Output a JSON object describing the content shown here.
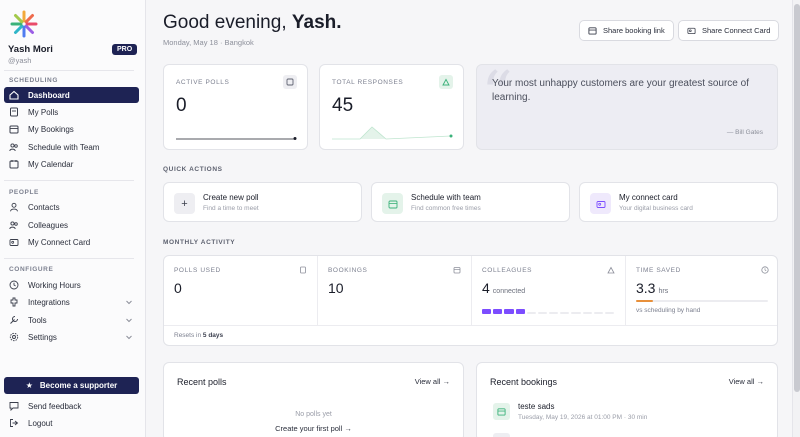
{
  "user": {
    "name": "Yash Mori",
    "handle": "@yash",
    "badge": "PRO"
  },
  "sidebar": {
    "sections": {
      "scheduling": "SCHEDULING",
      "people": "PEOPLE",
      "configure": "CONFIGURE"
    },
    "scheduling_items": [
      {
        "label": "Dashboard",
        "icon": "dashboard-icon",
        "active": true
      },
      {
        "label": "My Polls",
        "icon": "polls-icon"
      },
      {
        "label": "My Bookings",
        "icon": "bookings-icon"
      },
      {
        "label": "Schedule with Team",
        "icon": "team-icon"
      },
      {
        "label": "My Calendar",
        "icon": "calendar-icon"
      }
    ],
    "people_items": [
      {
        "label": "Contacts",
        "icon": "contacts-icon"
      },
      {
        "label": "Colleagues",
        "icon": "colleagues-icon"
      },
      {
        "label": "My Connect Card",
        "icon": "connect-card-icon"
      }
    ],
    "configure_items": [
      {
        "label": "Working Hours",
        "icon": "clock-icon"
      },
      {
        "label": "Integrations",
        "icon": "integrations-icon"
      },
      {
        "label": "Tools",
        "icon": "tools-icon"
      },
      {
        "label": "Settings",
        "icon": "settings-icon"
      }
    ],
    "supporter_label": "Become a supporter",
    "feedback_label": "Send feedback",
    "logout_label": "Logout"
  },
  "header": {
    "greeting_prefix": "Good evening, ",
    "greeting_name": "Yash.",
    "date_line": "Monday, May 18 · Bangkok",
    "share_booking_label": "Share booking link",
    "share_connect_label": "Share Connect Card"
  },
  "stats": {
    "active_polls": {
      "label": "ACTIVE POLLS",
      "value": "0"
    },
    "total_responses": {
      "label": "TOTAL RESPONSES",
      "value": "45"
    }
  },
  "quote": {
    "text": "Your most unhappy customers are your greatest source of learning.",
    "author": "— Bill Gates"
  },
  "quick_actions": {
    "title": "QUICK ACTIONS",
    "items": [
      {
        "title": "Create new poll",
        "subtitle": "Find a time to meet",
        "icon": "plus-icon"
      },
      {
        "title": "Schedule with team",
        "subtitle": "Find common free times",
        "icon": "team-icon"
      },
      {
        "title": "My connect card",
        "subtitle": "Your digital business card",
        "icon": "card-icon"
      }
    ]
  },
  "monthly": {
    "title": "MONTHLY ACTIVITY",
    "polls_used": {
      "label": "POLLS USED",
      "value": "0"
    },
    "bookings": {
      "label": "BOOKINGS",
      "value": "10"
    },
    "colleagues": {
      "label": "COLLEAGUES",
      "value": "4",
      "unit": "connected",
      "filled_segments": 4
    },
    "time_saved": {
      "label": "TIME SAVED",
      "value": "3.3",
      "unit": "hrs",
      "note": "vs scheduling by hand"
    },
    "reset_prefix": "Resets in ",
    "reset_days": "5 days"
  },
  "recent_polls": {
    "title": "Recent polls",
    "link": "View all →",
    "empty": "No polls yet",
    "cta": "Create your first poll →"
  },
  "recent_bookings": {
    "title": "Recent bookings",
    "link": "View all →",
    "items": [
      {
        "title": "teste sads",
        "subtitle": "Tuesday, May 19, 2026 at 01:00 PM · 30 min"
      }
    ]
  },
  "colors": {
    "brand_navy": "#1e2354",
    "accent_green": "#3bb27a",
    "accent_purple": "#7c4dff",
    "accent_orange": "#e8903a"
  }
}
